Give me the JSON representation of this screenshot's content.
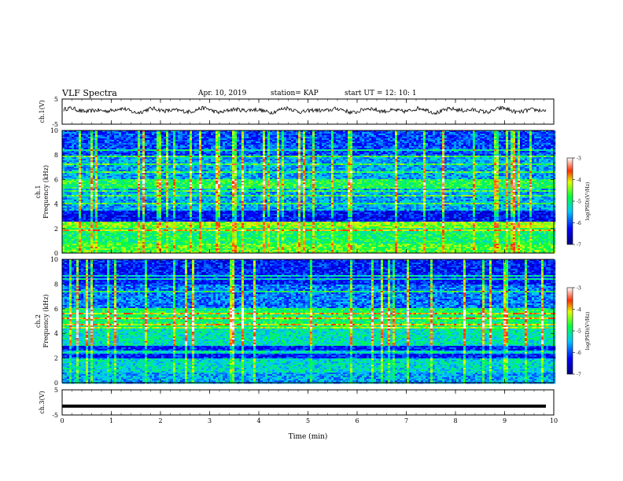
{
  "header": {
    "title": "VLF Spectra",
    "date": "Apr. 10, 2019",
    "station": "station= KAP",
    "start_ut": "start UT =  12: 10: 1"
  },
  "chart_data": [
    {
      "type": "line",
      "panel": "ch1-waveform",
      "ylabel": "ch.1(V)",
      "ylim": [
        -5,
        5
      ],
      "yticks": [
        "5",
        "-5"
      ],
      "xlim": [
        0,
        10
      ],
      "series": [
        {
          "values_note": "noisy oscillation about +0.5 V, amplitude about +/-1.5 V"
        }
      ]
    },
    {
      "type": "heatmap",
      "panel": "ch1-spectrogram",
      "ylabel": "ch.1\nFrequency (kHz)",
      "ylim": [
        0,
        10
      ],
      "yticks": [
        "0",
        "2",
        "4",
        "6",
        "8",
        "10"
      ],
      "xlim": [
        0,
        10
      ],
      "colorbar": {
        "label": "log(PSD)(V²/Hz)",
        "range": [
          -7,
          -3
        ],
        "ticks": [
          "-3",
          "-4",
          "-5",
          "-6",
          "-7"
        ]
      },
      "bands": [
        {
          "f_range": [
            0,
            0.8
          ],
          "log_psd": -4.6
        },
        {
          "f_range": [
            0.8,
            2.0
          ],
          "log_psd": -4.9
        },
        {
          "f_range": [
            2.0,
            2.6
          ],
          "log_psd": -4.4
        },
        {
          "f_range": [
            2.6,
            3.4
          ],
          "log_psd": -6.3
        },
        {
          "f_range": [
            3.4,
            5.2
          ],
          "log_psd": -5.6
        },
        {
          "f_range": [
            5.2,
            6.0
          ],
          "log_psd": -4.8
        },
        {
          "f_range": [
            6.0,
            8.0
          ],
          "log_psd": -5.6
        },
        {
          "f_range": [
            8.0,
            10.0
          ],
          "log_psd": -6.0
        }
      ]
    },
    {
      "type": "heatmap",
      "panel": "ch2-spectrogram",
      "ylabel": "ch.2\nFrequency (kHz)",
      "ylim": [
        0,
        10
      ],
      "yticks": [
        "0",
        "2",
        "4",
        "6",
        "8",
        "10"
      ],
      "xlim": [
        0,
        10
      ],
      "colorbar": {
        "label": "log(PSD)(V²/Hz)",
        "range": [
          -7,
          -3
        ],
        "ticks": [
          "-3",
          "-4",
          "-5",
          "-6",
          "-7"
        ]
      },
      "bands": [
        {
          "f_range": [
            0,
            0.8
          ],
          "log_psd": -5.6
        },
        {
          "f_range": [
            0.8,
            2.0
          ],
          "log_psd": -5.3
        },
        {
          "f_range": [
            2.0,
            3.0
          ],
          "log_psd": -6.2
        },
        {
          "f_range": [
            3.0,
            4.5
          ],
          "log_psd": -5.2
        },
        {
          "f_range": [
            4.5,
            6.0
          ],
          "log_psd": -4.9
        },
        {
          "f_range": [
            6.0,
            8.0
          ],
          "log_psd": -5.8
        },
        {
          "f_range": [
            8.0,
            10.0
          ],
          "log_psd": -6.2
        }
      ]
    },
    {
      "type": "line",
      "panel": "ch3-waveform",
      "ylabel": "ch.3(V)",
      "ylim": [
        -5,
        5
      ],
      "yticks": [
        "5",
        "-5"
      ],
      "xlim": [
        0,
        10
      ],
      "series": [
        {
          "values": [
            -1.5,
            -1.5
          ]
        }
      ]
    }
  ],
  "x_axis": {
    "label": "Time (min)",
    "ticks": [
      "0",
      "1",
      "2",
      "3",
      "4",
      "5",
      "6",
      "7",
      "8",
      "9",
      "10"
    ]
  }
}
